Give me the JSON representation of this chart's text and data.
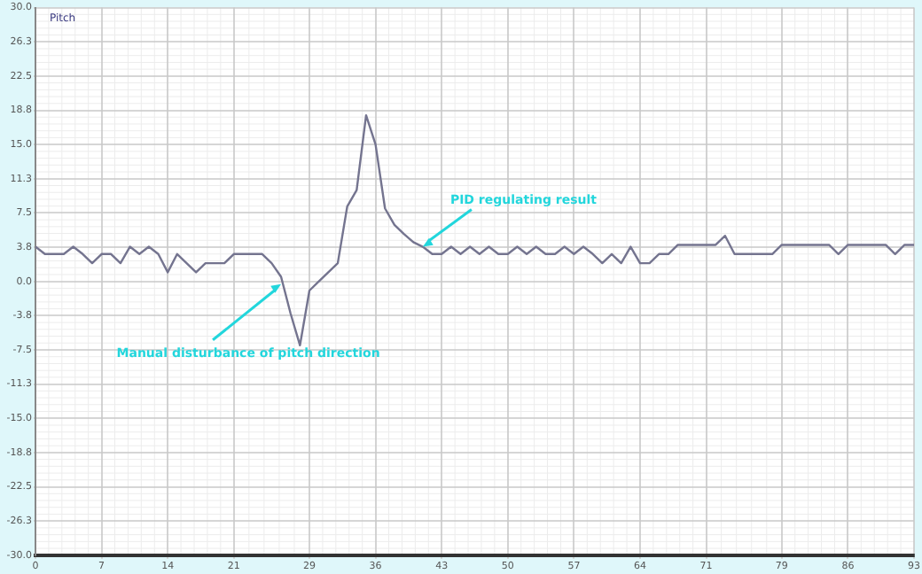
{
  "chart_data": {
    "type": "line",
    "title": "Pitch",
    "x": [
      0,
      1,
      2,
      3,
      4,
      5,
      6,
      7,
      8,
      9,
      10,
      11,
      12,
      13,
      14,
      15,
      16,
      17,
      18,
      19,
      20,
      21,
      22,
      23,
      24,
      25,
      26,
      27,
      28,
      29,
      30,
      31,
      32,
      33,
      34,
      35,
      36,
      37,
      38,
      39,
      40,
      41,
      42,
      43,
      44,
      45,
      46,
      47,
      48,
      49,
      50,
      51,
      52,
      53,
      54,
      55,
      56,
      57,
      58,
      59,
      60,
      61,
      62,
      63,
      64,
      65,
      66,
      67,
      68,
      69,
      70,
      71,
      72,
      73,
      74,
      75,
      76,
      77,
      78,
      79,
      80,
      81,
      82,
      83,
      84,
      85,
      86,
      87,
      88,
      89,
      90,
      91,
      92,
      93
    ],
    "series": [
      {
        "color": "#74748f",
        "values": [
          3.8,
          3,
          3,
          3,
          3.8,
          3,
          2,
          3,
          3,
          2,
          3.8,
          3,
          3.8,
          3,
          1,
          3,
          2,
          1,
          2,
          2,
          2,
          3,
          3,
          3,
          3,
          2,
          0.5,
          -3.5,
          -7,
          -1,
          0,
          1,
          2,
          8.2,
          10,
          18.2,
          15,
          8,
          6.2,
          5.2,
          4.3,
          3.8,
          3,
          3,
          3.8,
          3,
          3.8,
          3,
          3.8,
          3,
          3,
          3.8,
          3,
          3.8,
          3,
          3,
          3.8,
          3,
          3.8,
          3,
          2,
          3,
          2,
          3.8,
          2,
          2,
          3,
          3,
          4,
          4,
          4,
          4,
          4,
          5,
          3,
          3,
          3,
          3,
          3,
          4,
          4,
          4,
          4,
          4,
          4,
          3,
          4,
          4,
          4,
          4,
          4,
          3,
          4,
          4
        ]
      }
    ],
    "xlim": [
      0,
      93
    ],
    "xticks": [
      0,
      7,
      14,
      21,
      29,
      36,
      43,
      50,
      57,
      64,
      71,
      79,
      86,
      93
    ],
    "ylim": [
      -30,
      30
    ],
    "yticks": [
      {
        "value": 30,
        "label": "30.0"
      },
      {
        "value": 26.25,
        "label": "26.3"
      },
      {
        "value": 22.5,
        "label": "22.5"
      },
      {
        "value": 18.75,
        "label": "18.8"
      },
      {
        "value": 15,
        "label": "15.0"
      },
      {
        "value": 11.25,
        "label": "11.3"
      },
      {
        "value": 7.5,
        "label": "7.5"
      },
      {
        "value": 3.75,
        "label": "3.8"
      },
      {
        "value": 0,
        "label": "0.0"
      },
      {
        "value": -3.75,
        "label": "-3.8"
      },
      {
        "value": -7.5,
        "label": "-7.5"
      },
      {
        "value": -11.25,
        "label": "-11.3"
      },
      {
        "value": -15,
        "label": "-15.0"
      },
      {
        "value": -18.75,
        "label": "-18.8"
      },
      {
        "value": -22.5,
        "label": "-22.5"
      },
      {
        "value": -26.25,
        "label": "-26.3"
      },
      {
        "value": -30,
        "label": "-30.0"
      }
    ],
    "grid": true,
    "marker": "none",
    "line_style": "solid",
    "annotations": [
      {
        "text": "PID regulating result",
        "x": 41,
        "y": 3.8
      },
      {
        "text": "Manual disturbance of pitch direction",
        "x": 26,
        "y": -0.3
      }
    ]
  }
}
